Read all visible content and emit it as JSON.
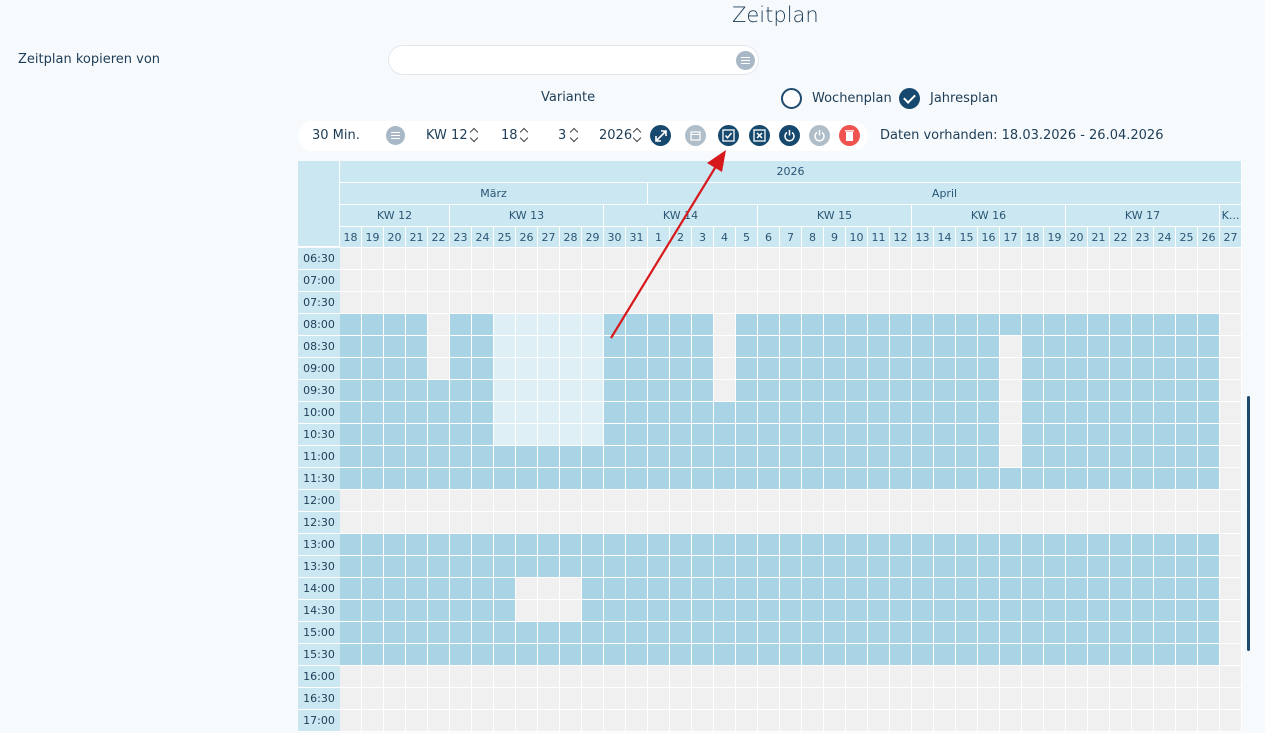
{
  "page": {
    "title": "Zeitplan"
  },
  "copy": {
    "label": "Zeitplan kopieren von",
    "value": ""
  },
  "variant": {
    "label": "Variante",
    "option_week": "Wochenplan",
    "option_year": "Jahresplan",
    "selected": "Jahresplan"
  },
  "toolbar": {
    "interval": "30 Min.",
    "week": "KW 12",
    "day": "18",
    "month": "3",
    "year": "2026",
    "icons": [
      "expand-icon",
      "calendar-icon",
      "check-all-icon",
      "uncheck-all-icon",
      "power-icon",
      "power-disabled-icon",
      "delete-icon"
    ],
    "data_range": "Daten vorhanden: 18.03.2026 - 26.04.2026"
  },
  "colors": {
    "active": "#a8d4e6",
    "inactive": "#f0f0f0",
    "partial": "#dfeff6",
    "header": "#cbe7f2",
    "accent": "#16496d",
    "arrow": "#d7191c"
  },
  "grid": {
    "year": "2026",
    "months": [
      {
        "label": "März",
        "days": 14
      },
      {
        "label": "April",
        "days": 27
      }
    ],
    "weeks": [
      {
        "label": "KW 12",
        "days": 5
      },
      {
        "label": "KW 13",
        "days": 7
      },
      {
        "label": "KW 14",
        "days": 7
      },
      {
        "label": "KW 15",
        "days": 7
      },
      {
        "label": "KW 16",
        "days": 7
      },
      {
        "label": "KW 17",
        "days": 7
      },
      {
        "label": "K...",
        "days": 1
      }
    ],
    "days": [
      "18",
      "19",
      "20",
      "21",
      "22",
      "23",
      "24",
      "25",
      "26",
      "27",
      "28",
      "29",
      "30",
      "31",
      "1",
      "2",
      "3",
      "4",
      "5",
      "6",
      "7",
      "8",
      "9",
      "10",
      "11",
      "12",
      "13",
      "14",
      "15",
      "16",
      "17",
      "18",
      "19",
      "20",
      "21",
      "22",
      "23",
      "24",
      "25",
      "26",
      "27"
    ],
    "times": [
      "06:30",
      "07:00",
      "07:30",
      "08:00",
      "08:30",
      "09:00",
      "09:30",
      "10:00",
      "10:30",
      "11:00",
      "11:30",
      "12:00",
      "12:30",
      "13:00",
      "13:30",
      "14:00",
      "14:30",
      "15:00",
      "15:30",
      "16:00",
      "16:30",
      "17:00"
    ],
    "rows": [
      "00000000000000000000000000000000000000000",
      "00000000000000000000000000000000000000000",
      "00000000000000000000000000000000000000000",
      "11110112222211111011111111111111111111110",
      "11110112222211111011111111111101111111110",
      "11110112222211111011111111111101111111110",
      "11111112222211111011111111111101111111110",
      "11111112222211111111111111111101111111110",
      "11111112222211111111111111111101111111110",
      "11111111111111111111111111111101111111110",
      "11111111111111111111111111111111111111110",
      "00000000000000000000000000000000000000000",
      "00000000000000000000000000000000000000000",
      "11111111111111111111111111111111111111110",
      "11111111111111111111111111111111111111110",
      "11111111000111111111111111111111111111110",
      "11111111000111111111111111111111111111110",
      "11111111111111111111111111111111111111110",
      "11111111111111111111111111111111111111110",
      "00000000000000000000000000000000000000000",
      "00000000000000000000000000000000000000000",
      "00000000000000000000000000000000000000000"
    ]
  }
}
